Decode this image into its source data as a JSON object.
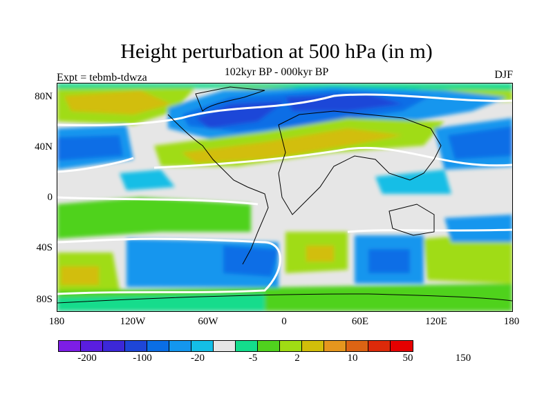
{
  "title": "Height perturbation at 500 hPa (in m)",
  "subtitle": "102kyr BP - 000kyr BP",
  "left_label": "Expt = tebmb-tdwza",
  "right_label": "DJF",
  "lat_labels": [
    "80N",
    "40N",
    "0",
    "40S",
    "80S"
  ],
  "lon_labels": [
    "180",
    "120W",
    "60W",
    "0",
    "60E",
    "120E",
    "180"
  ],
  "colorbar": {
    "colors": [
      "#7d1ee6",
      "#5a1ee0",
      "#3c28d8",
      "#1e46d8",
      "#0a6ee6",
      "#1496ee",
      "#14bee6",
      "#e6e6e6",
      "#14dc8c",
      "#50d21e",
      "#a0dc14",
      "#d2be0a",
      "#e6961e",
      "#dc6414",
      "#dc2a0a",
      "#e60000"
    ],
    "labels": [
      "-200",
      "-100",
      "-20",
      "-5",
      "2",
      "10",
      "50",
      "150"
    ]
  },
  "palette": {
    "neutral": "#e6e6e6",
    "c1": "#14bee6",
    "c2": "#1496ee",
    "c3": "#0a6ee6",
    "c4": "#1e46d8",
    "w1": "#14dc8c",
    "w2": "#50d21e",
    "w3": "#a0dc14",
    "w4": "#d2be0a",
    "w5": "#e6961e"
  }
}
